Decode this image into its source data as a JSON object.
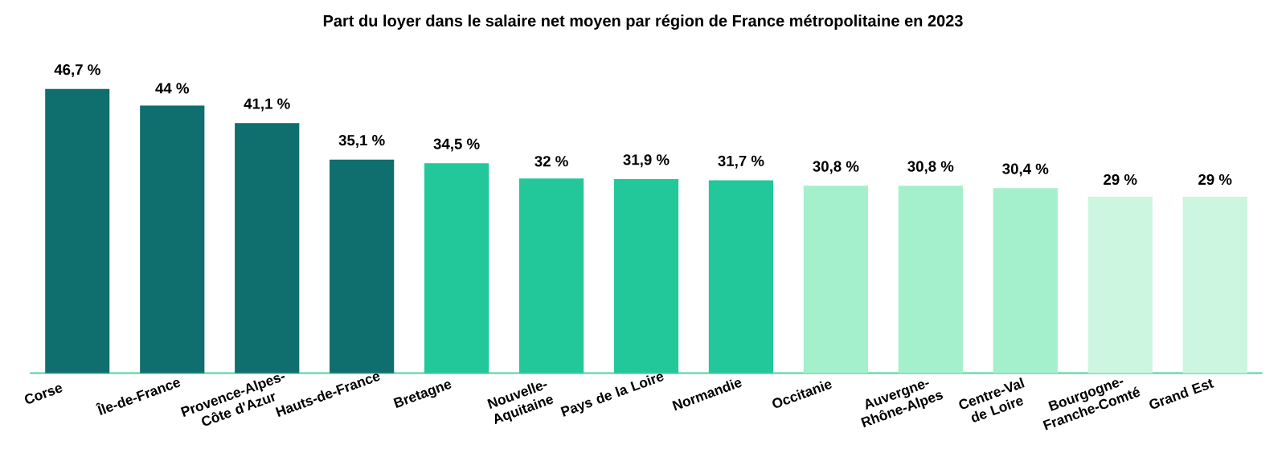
{
  "chart_data": {
    "type": "bar",
    "title": "Part du loyer dans le salaire net moyen par région de France métropolitaine en 2023",
    "categories": [
      "Corse",
      "Île-de-France",
      "Provence-Alpes-Côte d'Azur",
      "Hauts-de-France",
      "Bretagne",
      "Nouvelle-Aquitaine",
      "Pays de la Loire",
      "Normandie",
      "Occitanie",
      "Auvergne-Rhône-Alpes",
      "Centre-Val de Loire",
      "Bourgogne-Franche-Comté",
      "Grand Est"
    ],
    "values": [
      46.7,
      44,
      41.1,
      35.1,
      34.5,
      32,
      31.9,
      31.7,
      30.8,
      30.8,
      30.4,
      29,
      29
    ],
    "value_labels": [
      "46,7 %",
      "44 %",
      "41,1 %",
      "35,1 %",
      "34,5 %",
      "32 %",
      "31,9 %",
      "31,7 %",
      "30,8 %",
      "30,8 %",
      "30,4 %",
      "29 %",
      "29 %"
    ],
    "colors": [
      "#0f6e6e",
      "#0f6e6e",
      "#0f6e6e",
      "#0f6e6e",
      "#22c79a",
      "#22c79a",
      "#22c79a",
      "#22c79a",
      "#a5f0cc",
      "#a5f0cc",
      "#a5f0cc",
      "#cdf6e0",
      "#cdf6e0"
    ],
    "grid": false
  }
}
